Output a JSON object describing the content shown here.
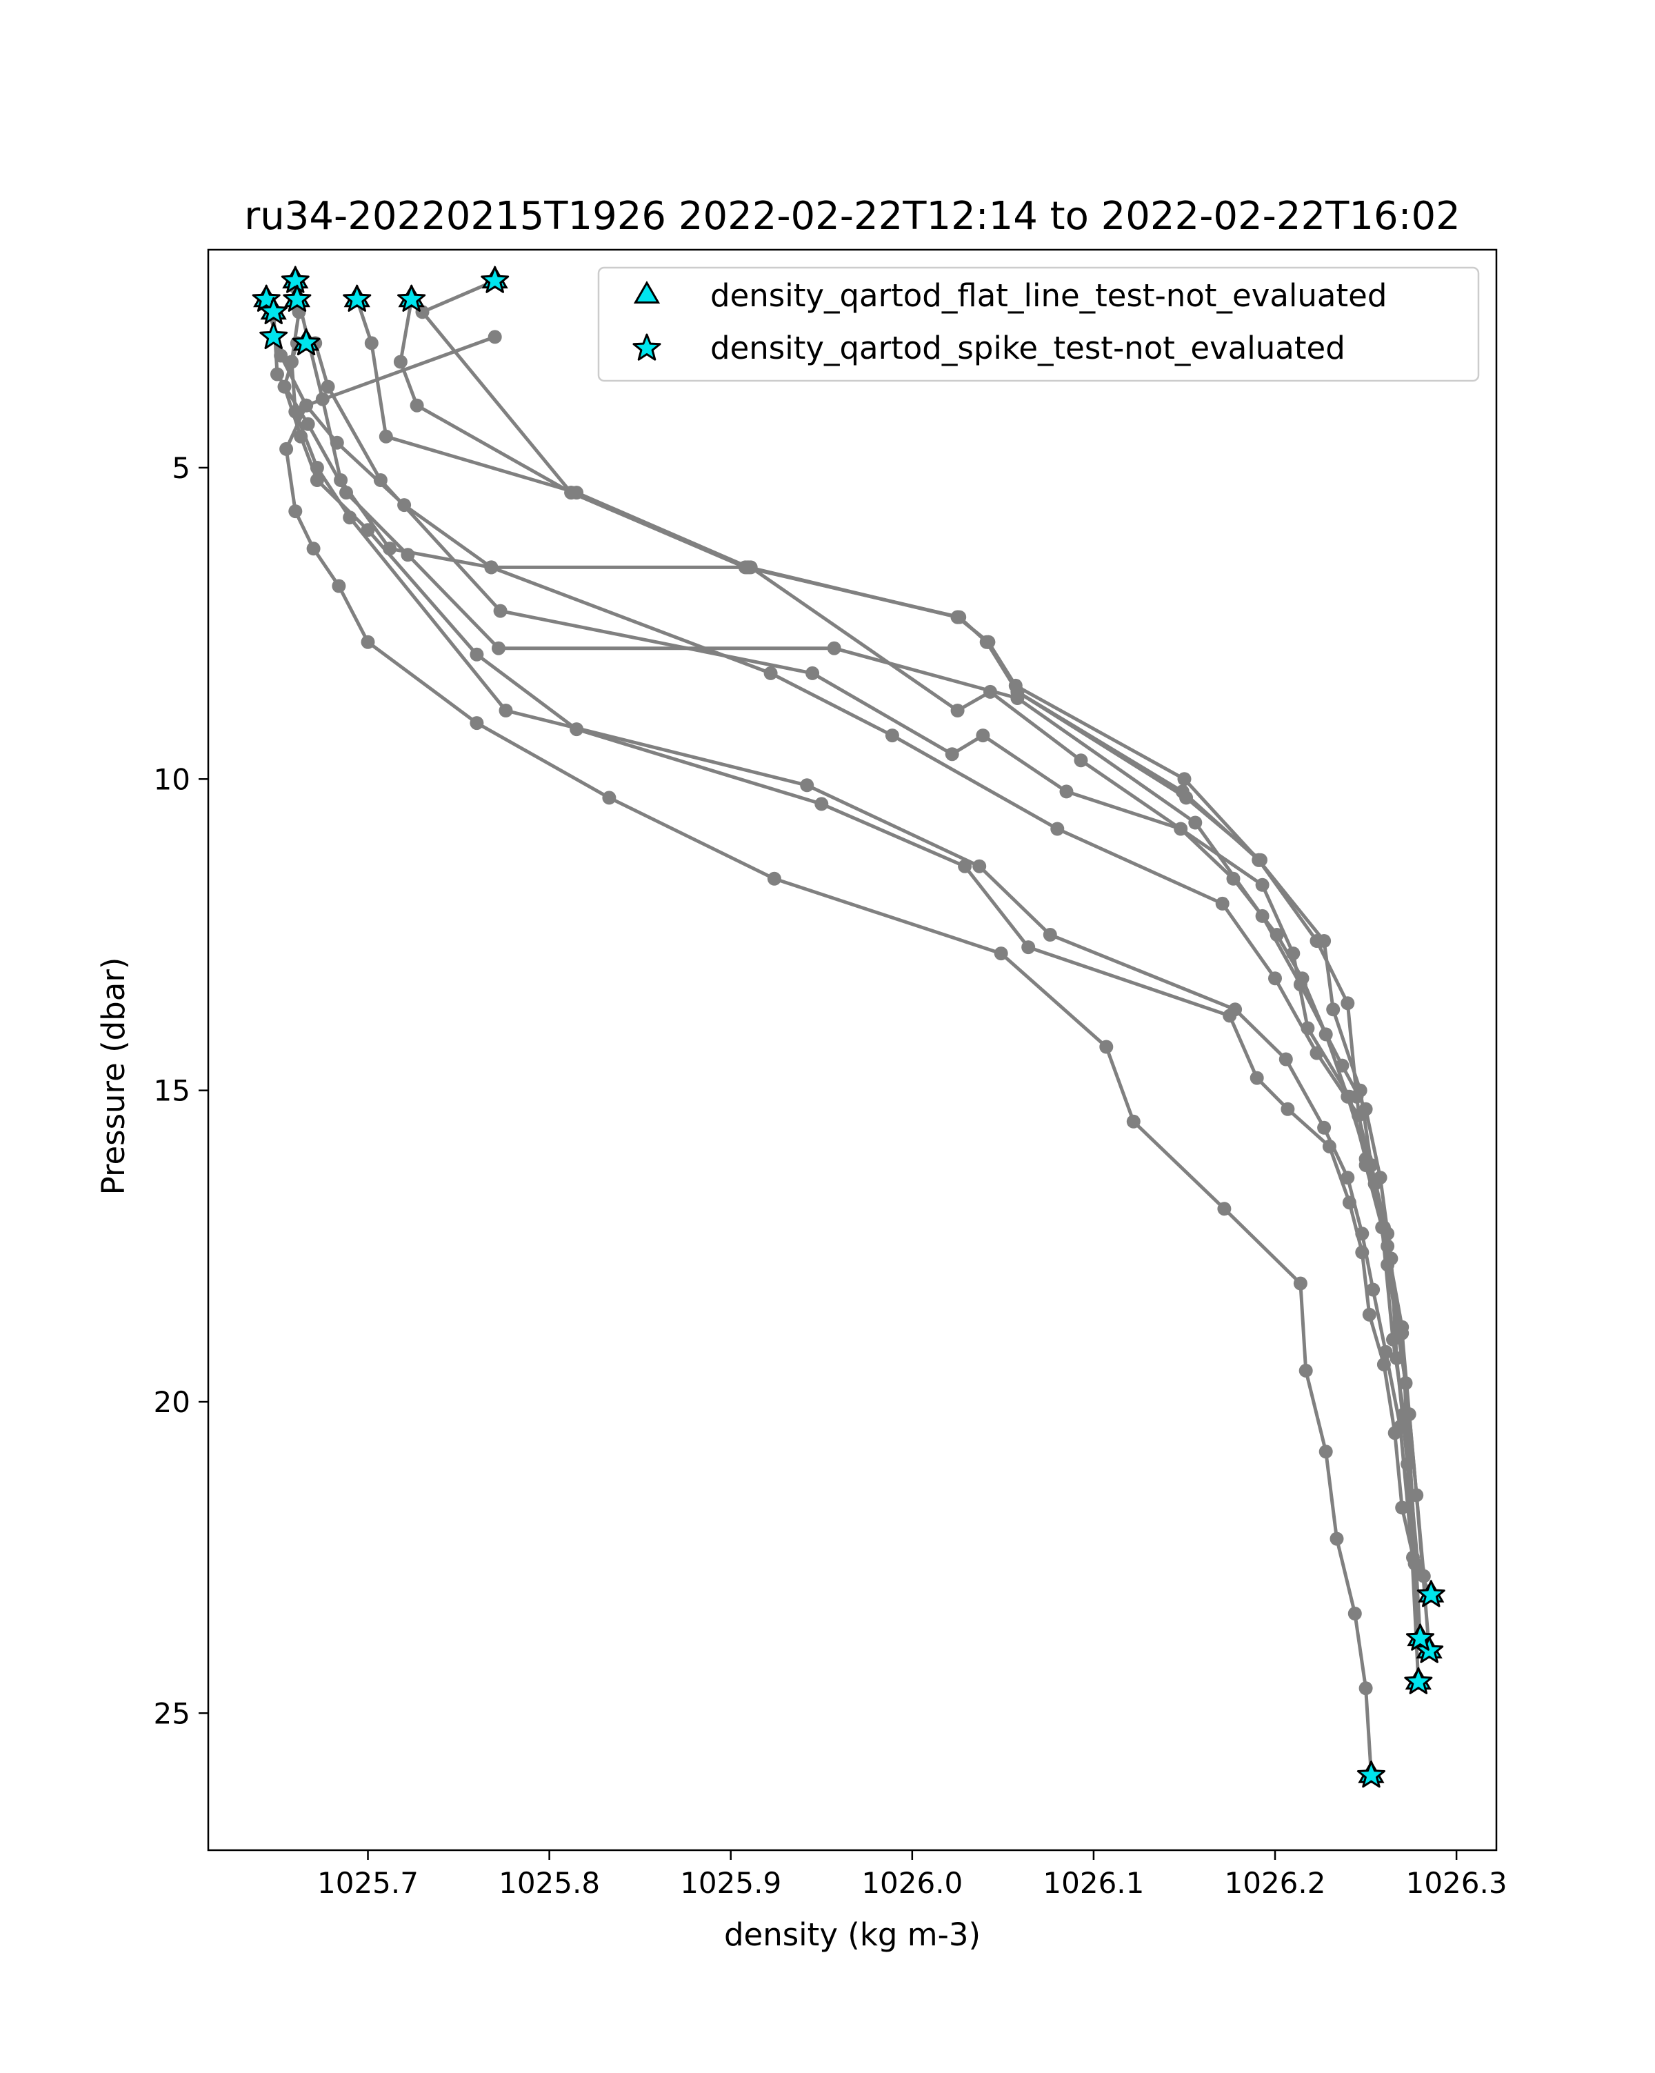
{
  "chart_data": {
    "type": "scatter",
    "title": "ru34-20220215T1926 2022-02-22T12:14 to 2022-02-22T16:02",
    "xlabel": "density (kg m-3)",
    "ylabel": "Pressure (dbar)",
    "xlim": [
      1025.612,
      1026.322
    ],
    "ylim": [
      27.2,
      1.5
    ],
    "y_inverted": true,
    "grid": false,
    "legend_position": "top-right",
    "xticks": [
      1025.7,
      1025.8,
      1025.9,
      1026.0,
      1026.1,
      1026.2,
      1026.3
    ],
    "xtick_labels": [
      "1025.7",
      "1025.8",
      "1025.9",
      "1026.0",
      "1026.1",
      "1026.2",
      "1026.3"
    ],
    "yticks": [
      5,
      10,
      15,
      20,
      25
    ],
    "ytick_labels": [
      "5",
      "10",
      "15",
      "20",
      "25"
    ],
    "line_color": "#808080",
    "marker_color": "#808080",
    "flag_color": "#00e5ee",
    "legend": [
      {
        "label": "density_qartod_flat_line_test-not_evaluated",
        "marker": "triangle"
      },
      {
        "label": "density_qartod_spike_test-not_evaluated",
        "marker": "star"
      }
    ],
    "profiles": [
      {
        "x": [
          1025.77,
          1025.666,
          1025.655,
          1025.66,
          1025.67,
          1025.684,
          1025.7,
          1025.76,
          1025.833,
          1025.924,
          1026.049,
          1026.107,
          1026.122,
          1026.172,
          1026.214,
          1026.217,
          1026.228,
          1026.234,
          1026.244,
          1026.25,
          1026.253
        ],
        "y": [
          2.9,
          4.0,
          4.7,
          5.7,
          6.3,
          6.9,
          7.8,
          9.1,
          10.3,
          11.6,
          12.8,
          14.3,
          15.5,
          16.9,
          18.1,
          19.5,
          20.8,
          22.2,
          23.4,
          24.6,
          26.0
        ]
      },
      {
        "x": [
          1025.661,
          1025.654,
          1025.663,
          1025.672,
          1025.7,
          1025.76,
          1025.815,
          1025.95,
          1026.029,
          1026.064,
          1026.175,
          1026.19,
          1026.207,
          1026.23,
          1026.241,
          1026.248,
          1026.252,
          1026.26,
          1026.266,
          1026.27,
          1026.277,
          1026.286
        ],
        "y": [
          3.0,
          3.7,
          4.5,
          5.2,
          6.0,
          8.0,
          9.2,
          10.4,
          11.4,
          12.7,
          13.8,
          14.8,
          15.3,
          15.9,
          16.8,
          17.6,
          18.6,
          19.4,
          20.5,
          21.7,
          22.6,
          23.1
        ]
      },
      {
        "x": [
          1025.662,
          1025.658,
          1025.66,
          1025.672,
          1025.69,
          1025.776,
          1025.942,
          1026.037,
          1026.076,
          1026.178,
          1026.206,
          1026.227,
          1026.24,
          1026.248,
          1026.254,
          1026.261,
          1026.269,
          1026.28
        ],
        "y": [
          2.5,
          3.3,
          4.1,
          5.0,
          5.8,
          8.9,
          10.1,
          11.4,
          12.5,
          13.7,
          14.5,
          15.6,
          16.4,
          17.3,
          18.2,
          19.2,
          20.4,
          23.8
        ]
      },
      {
        "x": [
          1025.644,
          1025.652,
          1025.666,
          1025.683,
          1025.72,
          1025.768,
          1025.922,
          1025.989,
          1026.08,
          1026.171,
          1026.2,
          1026.223,
          1026.246,
          1026.255,
          1026.262,
          1026.27,
          1026.278,
          1026.285
        ],
        "y": [
          2.3,
          3.2,
          4.0,
          4.6,
          5.6,
          6.6,
          8.3,
          9.3,
          10.8,
          12.0,
          13.2,
          14.4,
          15.4,
          16.5,
          17.5,
          18.9,
          21.5,
          24.0
        ]
      },
      {
        "x": [
          1025.648,
          1025.65,
          1025.667,
          1025.688,
          1025.722,
          1025.772,
          1025.957,
          1026.058,
          1026.156,
          1026.193,
          1026.214,
          1026.237,
          1026.25,
          1026.258,
          1026.264,
          1026.267,
          1026.273,
          1026.279
        ],
        "y": [
          2.5,
          3.5,
          4.3,
          5.4,
          6.4,
          7.9,
          7.9,
          8.7,
          10.7,
          12.2,
          13.3,
          14.6,
          15.3,
          16.4,
          17.7,
          19.3,
          21.0,
          24.5
        ]
      },
      {
        "x": [
          1025.671,
          1025.678,
          1025.707,
          1025.773,
          1025.945,
          1026.022,
          1026.039,
          1026.085,
          1026.148,
          1026.177,
          1026.201,
          1026.215,
          1026.228,
          1026.24,
          1026.255,
          1026.262,
          1026.272,
          1026.28
        ],
        "y": [
          3.0,
          3.7,
          5.2,
          7.3,
          8.3,
          9.6,
          9.3,
          10.2,
          10.8,
          11.6,
          12.5,
          13.2,
          14.1,
          15.1,
          16.5,
          17.8,
          19.7,
          23.8
        ]
      },
      {
        "x": [
          1025.66,
          1025.675,
          1025.685,
          1025.712,
          1025.768,
          1025.911,
          1026.025,
          1026.043,
          1026.093,
          1026.193,
          1026.21,
          1026.218,
          1026.241,
          1026.25,
          1026.26,
          1026.27,
          1026.276
        ],
        "y": [
          2.1,
          3.9,
          5.2,
          6.3,
          6.6,
          6.6,
          8.9,
          8.6,
          9.7,
          11.7,
          12.8,
          14.0,
          15.1,
          16.1,
          17.2,
          18.8,
          22.5
        ]
      },
      {
        "x": [
          1025.694,
          1025.702,
          1025.71,
          1025.815,
          1025.91,
          1026.025,
          1026.042,
          1026.057,
          1026.15,
          1026.191,
          1026.223,
          1026.24,
          1026.245,
          1026.25,
          1026.259,
          1026.265,
          1026.271,
          1026.279
        ],
        "y": [
          2.3,
          3.0,
          4.5,
          5.4,
          6.6,
          7.4,
          7.8,
          8.5,
          10.0,
          11.3,
          12.6,
          13.6,
          15.1,
          16.2,
          17.2,
          19.0,
          20.2,
          22.7
        ]
      },
      {
        "x": [
          1025.724,
          1025.718,
          1025.727,
          1025.812,
          1025.908,
          1026.026,
          1026.041,
          1026.058,
          1026.149,
          1026.191,
          1026.227,
          1026.232,
          1026.247,
          1026.253,
          1026.262,
          1026.268,
          1026.274,
          1026.282
        ],
        "y": [
          2.3,
          3.3,
          4.0,
          5.4,
          6.6,
          7.4,
          7.8,
          8.6,
          10.2,
          11.3,
          12.6,
          13.7,
          15.0,
          16.2,
          17.3,
          18.8,
          20.2,
          22.8
        ]
      },
      {
        "x": [
          1025.77,
          1025.73,
          1025.812,
          1025.909,
          1026.025,
          1026.042,
          1026.058,
          1026.151,
          1026.192
        ],
        "y": [
          2.0,
          2.5,
          5.4,
          6.6,
          7.4,
          7.8,
          8.6,
          10.3,
          11.3
        ]
      }
    ],
    "spike_flagged_points": {
      "x": [
        1025.644,
        1025.648,
        1025.648,
        1025.66,
        1025.661,
        1025.666,
        1025.694,
        1025.724,
        1025.77,
        1026.286,
        1026.285,
        1026.28,
        1026.279,
        1026.253
      ],
      "y": [
        2.3,
        2.5,
        2.9,
        2.0,
        2.3,
        3.0,
        2.3,
        2.3,
        2.0,
        23.1,
        24.0,
        23.8,
        24.5,
        26.0
      ]
    },
    "flat_line_flagged_points": {
      "x": [
        1025.644,
        1025.648,
        1025.66,
        1025.661,
        1025.666,
        1025.694,
        1025.724,
        1025.77,
        1026.286,
        1026.285,
        1026.28,
        1026.279,
        1026.253
      ],
      "y": [
        2.3,
        2.5,
        2.0,
        2.3,
        3.0,
        2.3,
        2.3,
        2.0,
        23.1,
        24.0,
        23.8,
        24.5,
        26.0
      ]
    }
  }
}
